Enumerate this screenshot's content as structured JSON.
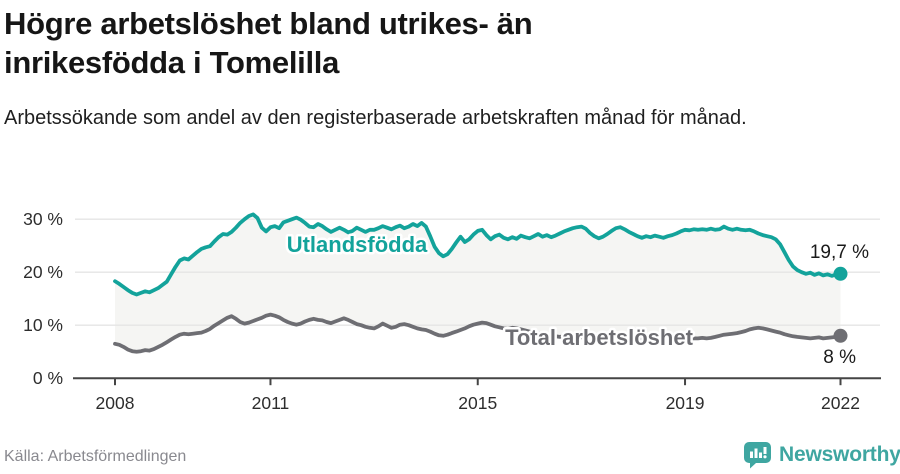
{
  "header": {
    "title": "Högre arbetslöshet bland utrikes- än inrikesfödda i Tomelilla",
    "subtitle": "Arbetssökande som andel av den registerbaserade arbetskraften månad för månad."
  },
  "footer": {
    "source": "Källa: Arbetsförmedlingen",
    "brand": "Newsworthy",
    "brand_color": "#3fa6a1"
  },
  "chart_data": {
    "type": "line",
    "unit": "%",
    "frequency": "monthly",
    "x_start_year": 2008,
    "x_end_year": 2022,
    "ylim": [
      0,
      33
    ],
    "grid": true,
    "band_fill": "#f5f5f3",
    "grid_color": "#e5e5e5",
    "axis_color": "#454545",
    "tick_label_color": "#2d2d2d",
    "yticks": [
      {
        "value": 30,
        "label": "30 %"
      },
      {
        "value": 20,
        "label": "20 %"
      },
      {
        "value": 10,
        "label": "10 %"
      },
      {
        "value": 0,
        "label": "0 %"
      }
    ],
    "xticks": [
      {
        "year": 2008,
        "label": "2008"
      },
      {
        "year": 2011,
        "label": "2011"
      },
      {
        "year": 2015,
        "label": "2015"
      },
      {
        "year": 2019,
        "label": "2019"
      },
      {
        "year": 2022,
        "label": "2022"
      }
    ],
    "series": [
      {
        "id": "utlandsfodda",
        "name": "Utlandsfödda",
        "color": "#13a39b",
        "end_label": "19,7 %",
        "end_value": 19.7,
        "values": [
          18.3,
          17.8,
          17.2,
          16.6,
          16.1,
          15.8,
          16.1,
          16.4,
          16.2,
          16.6,
          17.0,
          17.6,
          18.2,
          19.6,
          21.0,
          22.2,
          22.6,
          22.4,
          23.1,
          23.8,
          24.4,
          24.7,
          24.9,
          25.8,
          26.6,
          27.2,
          27.1,
          27.6,
          28.4,
          29.3,
          30.0,
          30.6,
          30.9,
          30.2,
          28.4,
          27.7,
          28.5,
          28.7,
          28.3,
          29.4,
          29.7,
          30.0,
          30.3,
          29.9,
          29.3,
          28.6,
          28.5,
          29.1,
          28.7,
          28.1,
          27.6,
          28.0,
          28.4,
          28.0,
          27.5,
          27.8,
          28.4,
          28.0,
          27.6,
          28.0,
          28.0,
          28.3,
          28.7,
          28.4,
          28.1,
          28.5,
          28.8,
          28.3,
          28.6,
          29.1,
          28.7,
          29.3,
          28.6,
          26.8,
          24.8,
          23.6,
          23.0,
          23.4,
          24.4,
          25.6,
          26.7,
          25.7,
          26.2,
          27.1,
          27.8,
          28.0,
          27.0,
          26.2,
          26.8,
          27.1,
          26.5,
          26.2,
          26.6,
          26.3,
          26.9,
          26.6,
          26.4,
          26.8,
          27.2,
          26.7,
          27.0,
          26.6,
          26.9,
          27.3,
          27.7,
          28.0,
          28.3,
          28.5,
          28.6,
          28.2,
          27.4,
          26.8,
          26.4,
          26.7,
          27.2,
          27.8,
          28.3,
          28.5,
          28.1,
          27.6,
          27.2,
          26.8,
          26.5,
          26.8,
          26.6,
          26.9,
          26.7,
          26.5,
          26.8,
          27.0,
          27.3,
          27.7,
          28.0,
          27.9,
          28.1,
          28.0,
          28.1,
          28.0,
          28.2,
          28.0,
          28.1,
          28.6,
          28.2,
          28.0,
          28.2,
          28.0,
          27.9,
          28.0,
          27.7,
          27.3,
          27.0,
          26.8,
          26.6,
          26.2,
          25.3,
          23.8,
          22.3,
          21.1,
          20.4,
          20.0,
          19.7,
          19.9,
          19.5,
          19.8,
          19.4,
          19.6,
          19.3,
          19.6,
          19.7
        ]
      },
      {
        "id": "total-arbetsloshet",
        "name": "Total arbetslöshet",
        "color": "#6e6e73",
        "end_label": "8 %",
        "end_value": 8.0,
        "values": [
          6.5,
          6.3,
          5.9,
          5.4,
          5.1,
          5.0,
          5.1,
          5.3,
          5.2,
          5.5,
          5.9,
          6.3,
          6.8,
          7.3,
          7.8,
          8.2,
          8.4,
          8.3,
          8.4,
          8.5,
          8.6,
          8.9,
          9.3,
          9.9,
          10.4,
          10.9,
          11.4,
          11.7,
          11.2,
          10.6,
          10.3,
          10.5,
          10.8,
          11.1,
          11.4,
          11.8,
          12.0,
          11.8,
          11.5,
          11.0,
          10.6,
          10.3,
          10.1,
          10.3,
          10.7,
          11.0,
          11.2,
          11.0,
          10.9,
          10.6,
          10.4,
          10.7,
          11.0,
          11.3,
          11.0,
          10.6,
          10.2,
          10.0,
          9.7,
          9.5,
          9.4,
          9.8,
          10.3,
          9.9,
          9.5,
          9.7,
          10.1,
          10.2,
          10.0,
          9.7,
          9.4,
          9.2,
          9.1,
          8.8,
          8.4,
          8.1,
          8.0,
          8.2,
          8.5,
          8.8,
          9.1,
          9.4,
          9.8,
          10.1,
          10.3,
          10.5,
          10.4,
          10.1,
          9.8,
          9.6,
          9.4,
          9.3,
          9.5,
          9.4,
          9.2,
          9.0,
          8.8,
          8.6,
          8.5,
          8.3,
          8.2,
          8.0,
          7.9,
          7.8,
          7.9,
          8.0,
          7.9,
          7.8,
          7.7,
          7.6,
          7.7,
          7.6,
          7.5,
          7.4,
          7.4,
          7.5,
          7.6,
          7.5,
          7.4,
          7.4,
          7.3,
          7.3,
          7.4,
          7.4,
          7.3,
          7.2,
          7.3,
          7.4,
          7.4,
          7.5,
          7.4,
          7.5,
          7.5,
          7.4,
          7.5,
          7.5,
          7.6,
          7.5,
          7.6,
          7.8,
          8.0,
          8.2,
          8.3,
          8.4,
          8.5,
          8.7,
          8.9,
          9.2,
          9.4,
          9.5,
          9.4,
          9.2,
          9.0,
          8.8,
          8.6,
          8.3,
          8.1,
          7.9,
          7.8,
          7.7,
          7.6,
          7.5,
          7.6,
          7.7,
          7.5,
          7.6,
          7.7,
          7.8,
          8.0
        ]
      }
    ]
  }
}
